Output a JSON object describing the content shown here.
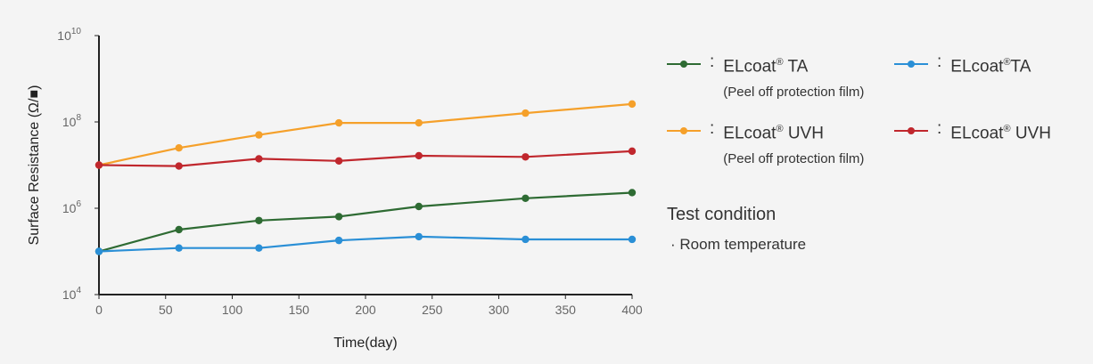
{
  "chart_data": {
    "type": "line",
    "xlabel": "Time(day)",
    "ylabel": "Surface Resistance (Ω/■)",
    "xlim": [
      0,
      400
    ],
    "x_ticks": [
      0,
      50,
      100,
      150,
      200,
      250,
      300,
      350,
      400
    ],
    "y_scale": "log",
    "ylim": [
      10000,
      10000000000
    ],
    "y_ticks": [
      {
        "value": 10000,
        "base": "10",
        "exp": "4"
      },
      {
        "value": 1000000,
        "base": "10",
        "exp": "6"
      },
      {
        "value": 100000000,
        "base": "10",
        "exp": "8"
      },
      {
        "value": 10000000000,
        "base": "10",
        "exp": "10"
      }
    ],
    "grid": false,
    "legend_position": "right",
    "series": [
      {
        "name": "ELcoat® TA",
        "subtitle": "(Peel off protection film)",
        "color": "#2e6b33",
        "x": [
          0,
          60,
          120,
          180,
          240,
          320,
          400
        ],
        "y": [
          100000,
          320000,
          520000,
          640000,
          1100000,
          1700000,
          2300000
        ]
      },
      {
        "name": "ELcoat® TA",
        "color": "#2a8fd6",
        "x": [
          0,
          60,
          120,
          180,
          240,
          320,
          400
        ],
        "y": [
          100000,
          120000,
          120000,
          180000,
          220000,
          190000,
          190000
        ]
      },
      {
        "name": "ELcoat® UVH",
        "subtitle": "(Peel off protection film)",
        "color": "#f5a02a",
        "x": [
          0,
          60,
          120,
          180,
          240,
          320,
          400
        ],
        "y": [
          10000000,
          25000000,
          50000000,
          95000000,
          95000000,
          160000000,
          260000000
        ]
      },
      {
        "name": "ELcoat® UVH",
        "color": "#c0272d",
        "x": [
          0,
          60,
          120,
          180,
          240,
          320,
          400
        ],
        "y": [
          10000000,
          9500000,
          14000000,
          12500000,
          16500000,
          15500000,
          21000000
        ]
      }
    ]
  },
  "legend": [
    {
      "colon": ":",
      "name_base": "ELcoat",
      "name_sup": "®",
      "name_tail": " TA",
      "sub": "(Peel off protection film)"
    },
    {
      "colon": ":",
      "name_base": "ELcoat",
      "name_sup": "®",
      "name_tail": "TA",
      "sub": ""
    },
    {
      "colon": ":",
      "name_base": "ELcoat",
      "name_sup": "®",
      "name_tail": " UVH",
      "sub": "(Peel off protection film)"
    },
    {
      "colon": ":",
      "name_base": "ELcoat",
      "name_sup": "®",
      "name_tail": " UVH",
      "sub": ""
    }
  ],
  "test_condition": {
    "title": "Test condition",
    "item": "· Room temperature"
  }
}
